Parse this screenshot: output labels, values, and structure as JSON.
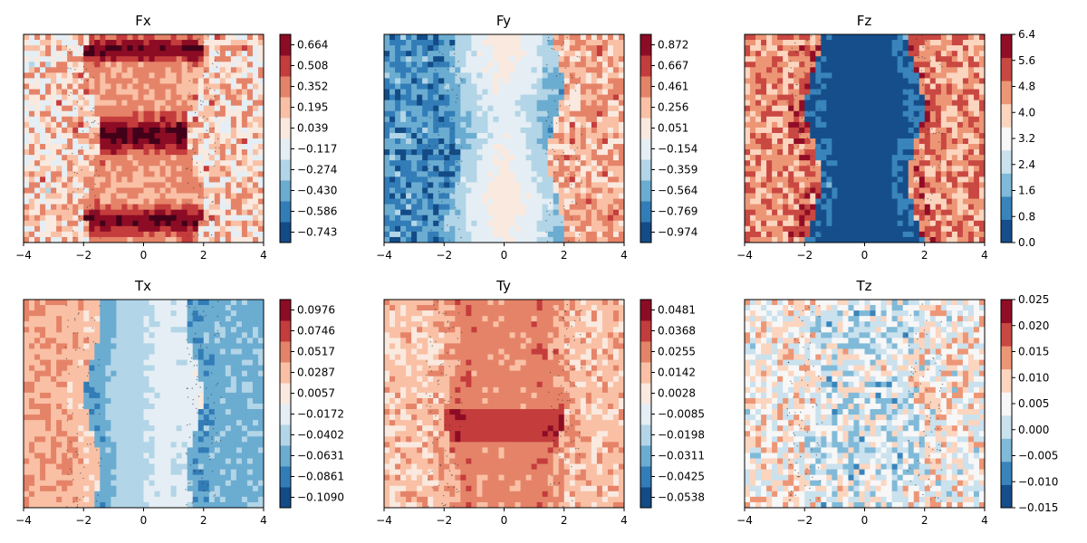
{
  "chart_data": [
    {
      "type": "heatmap",
      "title": "Fx",
      "xlim": [
        -4,
        4
      ],
      "xticks": [
        "−4",
        "−2",
        "0",
        "2",
        "4"
      ],
      "colorbar": {
        "ticks": [
          "−0.743",
          "−0.586",
          "−0.430",
          "−0.274",
          "−0.117",
          "0.039",
          "0.195",
          "0.352",
          "0.508",
          "0.664"
        ],
        "vmin": -0.743,
        "vmax": 0.743
      },
      "pattern": {
        "sides": 0.15,
        "center": 0.3,
        "band_top": 0.75,
        "band_bot": 0.75,
        "band_mid": 0.85,
        "noise": 0.3,
        "fringe": 0.05
      }
    },
    {
      "type": "heatmap",
      "title": "Fy",
      "xlim": [
        -4,
        4
      ],
      "xticks": [
        "−4",
        "−2",
        "0",
        "2",
        "4"
      ],
      "colorbar": {
        "ticks": [
          "−0.974",
          "−0.769",
          "−0.564",
          "−0.359",
          "−0.154",
          "0.051",
          "0.256",
          "0.461",
          "0.667",
          "0.872"
        ],
        "vmin": -0.974,
        "vmax": 0.974
      },
      "pattern": {
        "left": -0.6,
        "right": 0.35,
        "center": 0.05,
        "noise": 0.25,
        "fringe": -0.1
      }
    },
    {
      "type": "heatmap",
      "title": "Fz",
      "xlim": [
        -4,
        4
      ],
      "xticks": [
        "−4",
        "−2",
        "0",
        "2",
        "4"
      ],
      "colorbar": {
        "ticks": [
          "0.0",
          "0.8",
          "1.6",
          "2.4",
          "3.2",
          "4.0",
          "4.8",
          "5.6",
          "6.4"
        ],
        "vmin": 0.0,
        "vmax": 6.4
      },
      "pattern": {
        "sides": 4.6,
        "center": 0.2,
        "noise": 0.9,
        "fringe": 1.0
      }
    },
    {
      "type": "heatmap",
      "title": "Tx",
      "xlim": [
        -4,
        4
      ],
      "xticks": [
        "−4",
        "−2",
        "0",
        "2",
        "4"
      ],
      "colorbar": {
        "ticks": [
          "−0.1090",
          "−0.0861",
          "−0.0631",
          "−0.0402",
          "−0.0172",
          "0.0057",
          "0.0287",
          "0.0517",
          "0.0746",
          "0.0976"
        ],
        "vmin": -0.109,
        "vmax": 0.109
      },
      "pattern": {
        "left": 0.04,
        "right": -0.05,
        "noise": 0.012,
        "fringe": -0.02
      }
    },
    {
      "type": "heatmap",
      "title": "Ty",
      "xlim": [
        -4,
        4
      ],
      "xticks": [
        "−4",
        "−2",
        "0",
        "2",
        "4"
      ],
      "colorbar": {
        "ticks": [
          "−0.0538",
          "−0.0425",
          "−0.0311",
          "−0.0198",
          "−0.0085",
          "0.0028",
          "0.0142",
          "0.0255",
          "0.0368",
          "0.0481"
        ],
        "vmin": -0.0538,
        "vmax": 0.0538
      },
      "pattern": {
        "sides": 0.015,
        "center": 0.024,
        "noise": 0.009,
        "fringe": 0.01
      }
    },
    {
      "type": "heatmap",
      "title": "Tz",
      "xlim": [
        -4,
        4
      ],
      "xticks": [
        "−4",
        "−2",
        "0",
        "2",
        "4"
      ],
      "colorbar": {
        "ticks": [
          "−0.015",
          "−0.010",
          "−0.005",
          "0.000",
          "0.005",
          "0.010",
          "0.015",
          "0.020",
          "0.025"
        ],
        "vmin": -0.015,
        "vmax": 0.025
      },
      "pattern": {
        "sides": 0.006,
        "center": 0.004,
        "noise": 0.008,
        "fringe": 0.0
      }
    }
  ],
  "colormap": [
    "#053061",
    "#2166ac",
    "#4393c3",
    "#92c5de",
    "#d1e5f0",
    "#f7f7f7",
    "#fddbc7",
    "#f4a582",
    "#d6604d",
    "#b2182b",
    "#67001f"
  ]
}
